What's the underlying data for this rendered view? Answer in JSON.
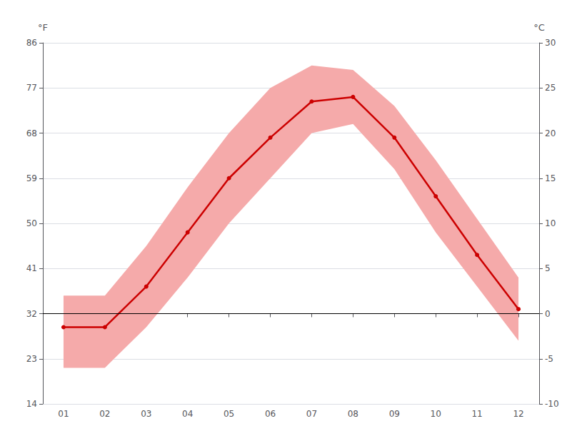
{
  "chart_data": {
    "type": "line",
    "categories": [
      "01",
      "02",
      "03",
      "04",
      "05",
      "06",
      "07",
      "08",
      "09",
      "10",
      "11",
      "12"
    ],
    "ylabel": "°C",
    "y2label": "°F",
    "ylim": [
      -10,
      30
    ],
    "yticks": [
      -10,
      -5,
      0,
      5,
      10,
      15,
      20,
      25,
      30
    ],
    "y2lim": [
      14,
      86
    ],
    "y2ticks": [
      14,
      23,
      32,
      41,
      50,
      59,
      68,
      77,
      86
    ],
    "grid": true,
    "hline": {
      "value": 0,
      "color": "#000000"
    },
    "series": [
      {
        "type": "band",
        "color": "#f5aaaa",
        "low": [
          -6.0,
          -6.0,
          -1.5,
          4.0,
          10.0,
          15.0,
          20.0,
          21.0,
          16.0,
          9.0,
          3.0,
          -3.0
        ],
        "high": [
          2.0,
          2.0,
          7.5,
          14.0,
          20.0,
          25.0,
          27.5,
          27.0,
          23.0,
          17.0,
          10.5,
          4.0
        ]
      },
      {
        "type": "line",
        "color": "#cc0000",
        "marker": "circle",
        "values": [
          -1.5,
          -1.5,
          3.0,
          9.0,
          15.0,
          19.5,
          23.5,
          24.0,
          19.5,
          13.0,
          6.5,
          0.5
        ]
      }
    ]
  }
}
